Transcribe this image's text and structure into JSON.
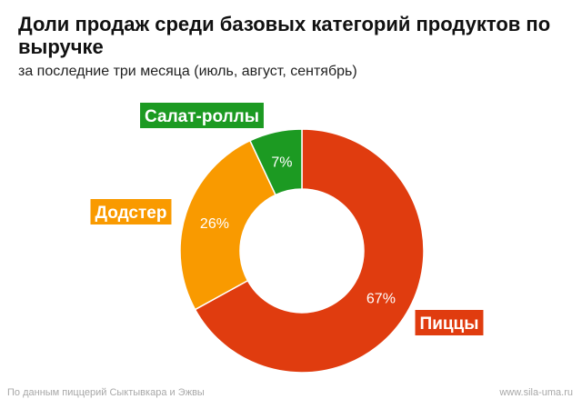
{
  "header": {
    "title": "Доли продаж среди базовых категорий продуктов по выручке",
    "subtitle": "за последние три месяца (июль, август, сентябрь)"
  },
  "footer": {
    "source": "По данным пиццерий Сыктывкара и Эжвы",
    "site": "www.sila-uma.ru"
  },
  "chart_data": {
    "type": "pie",
    "variant": "donut",
    "unit": "%",
    "slices": [
      {
        "label": "Пиццы",
        "value": 67,
        "value_label": "67%",
        "color": "#e03c0f"
      },
      {
        "label": "Додстер",
        "value": 26,
        "value_label": "26%",
        "color": "#f99a00"
      },
      {
        "label": "Салат-роллы",
        "value": 7,
        "value_label": "7%",
        "color": "#1c9a22"
      }
    ]
  }
}
